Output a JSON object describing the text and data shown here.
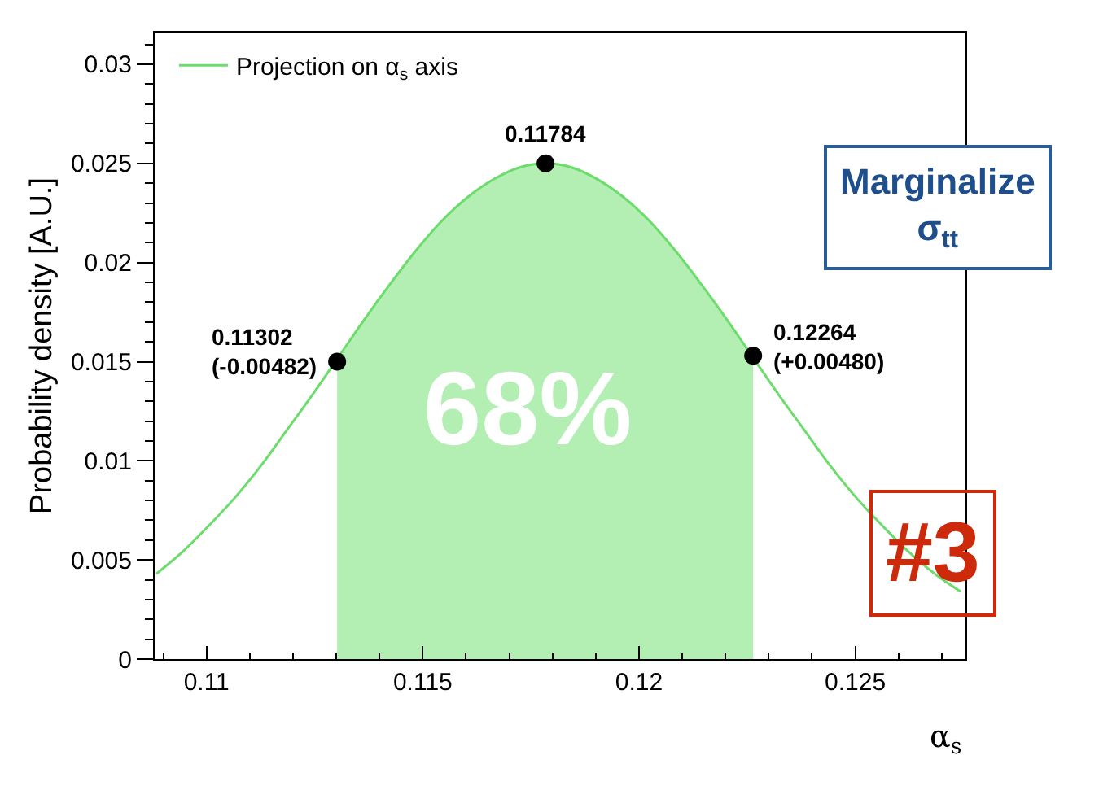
{
  "chart_data": {
    "type": "line",
    "ylabel": "Probability density [A.U.]",
    "xlabel": "α$_{s}$",
    "xlim": [
      0.1088,
      0.12755
    ],
    "xticks": [
      0.11,
      0.115,
      0.12,
      0.125
    ],
    "ylim": [
      0,
      0.0316
    ],
    "yticks": [
      0,
      0.005,
      0.01,
      0.015,
      0.02,
      0.025,
      0.03
    ],
    "legend": "top left",
    "series": [
      {
        "type": "area",
        "color": "#b3eeb3",
        "x": [
          0.11302,
          0.11364,
          0.11424,
          0.11484,
          0.11544,
          0.11604,
          0.11664,
          0.11724,
          0.11784,
          0.11844,
          0.11904,
          0.11964,
          0.12024,
          0.12084,
          0.12144,
          0.12204,
          0.12264
        ],
        "values": [
          0.015,
          0.0171,
          0.0189,
          0.0206,
          0.0221,
          0.0233,
          0.0242,
          0.0248,
          0.025,
          0.0248,
          0.0242,
          0.0233,
          0.0221,
          0.0206,
          0.0189,
          0.0171,
          0.0152
        ]
      },
      {
        "name": "Projection on α$_{s}$ axis",
        "color": "#6cdc6c",
        "x": [
          0.10884,
          0.10944,
          0.11004,
          0.11064,
          0.11124,
          0.11184,
          0.11244,
          0.11304,
          0.11364,
          0.11424,
          0.11484,
          0.11544,
          0.11604,
          0.11664,
          0.11724,
          0.11784,
          0.11844,
          0.11904,
          0.11964,
          0.12024,
          0.12084,
          0.12144,
          0.12204,
          0.12264,
          0.12324,
          0.12384,
          0.12444,
          0.12504,
          0.12564,
          0.12624,
          0.12684,
          0.12744
        ],
        "values": [
          0.0043,
          0.0054,
          0.0067,
          0.0081,
          0.0097,
          0.0115,
          0.0133,
          0.0152,
          0.0171,
          0.0189,
          0.0206,
          0.0221,
          0.0233,
          0.0242,
          0.0248,
          0.025,
          0.0248,
          0.0242,
          0.0233,
          0.0221,
          0.0206,
          0.0189,
          0.0171,
          0.0152,
          0.0133,
          0.0115,
          0.0097,
          0.0081,
          0.0067,
          0.0054,
          0.0043,
          0.0034
        ]
      },
      {
        "type": "scatter",
        "color": "#000000",
        "marker": "circle",
        "x": [
          0.11302,
          0.11784,
          0.12264
        ],
        "values": [
          0.015,
          0.025,
          0.0153
        ]
      }
    ],
    "annotations": [
      {
        "text": "0.11784",
        "x": 0.11784,
        "y": 0.025
      },
      {
        "text": "0.11302\n(-0.00482)",
        "x": 0.11302,
        "y": 0.015
      },
      {
        "text": "0.12264\n(+0.00480)",
        "x": 0.12264,
        "y": 0.0153
      },
      "68%",
      "Marginalize\nσ$_{tt}$",
      "#3"
    ]
  }
}
